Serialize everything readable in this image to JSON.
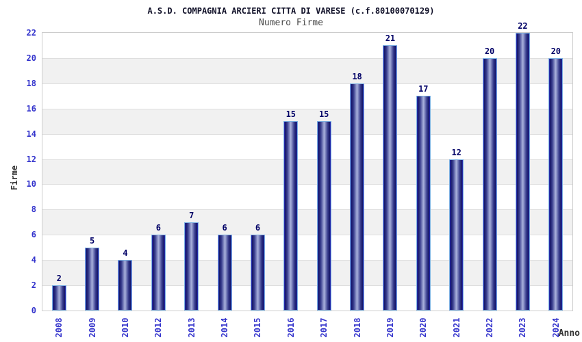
{
  "header": {
    "title": "A.S.D. COMPAGNIA ARCIERI CITTA DI VARESE (c.f.80100070129)",
    "subtitle": "Numero Firme"
  },
  "axes": {
    "y_title": "Firme",
    "x_title": "Anno"
  },
  "chart_data": {
    "type": "bar",
    "title": "A.S.D. COMPAGNIA ARCIERI CITTA DI VARESE (c.f.80100070129)",
    "subtitle": "Numero Firme",
    "xlabel": "Anno",
    "ylabel": "Firme",
    "categories": [
      "2008",
      "2009",
      "2010",
      "2012",
      "2013",
      "2014",
      "2015",
      "2016",
      "2017",
      "2018",
      "2019",
      "2020",
      "2021",
      "2022",
      "2023",
      "2024"
    ],
    "values": [
      2,
      5,
      4,
      6,
      7,
      6,
      6,
      15,
      15,
      18,
      21,
      17,
      12,
      20,
      22,
      20
    ],
    "ylim": [
      0,
      22
    ],
    "ytick_step": 2,
    "grid": "horizontal-alternating-bands",
    "legend": "none",
    "bar_value_labels": true
  },
  "colors": {
    "tick_label": "#3333cc",
    "value_label": "#000066",
    "title": "#101028",
    "subtitle": "#4a4a4a",
    "axis_title": "#333333",
    "band_alt": "#f1f1f1",
    "band_base": "#ffffff",
    "gridline": "#dedede",
    "plot_border": "#cccccc",
    "bar_border_top": "#7cb0e2",
    "bar_edge": "#2a35cc",
    "bar_dark": "#141466",
    "bar_light": "#aab2dd"
  }
}
